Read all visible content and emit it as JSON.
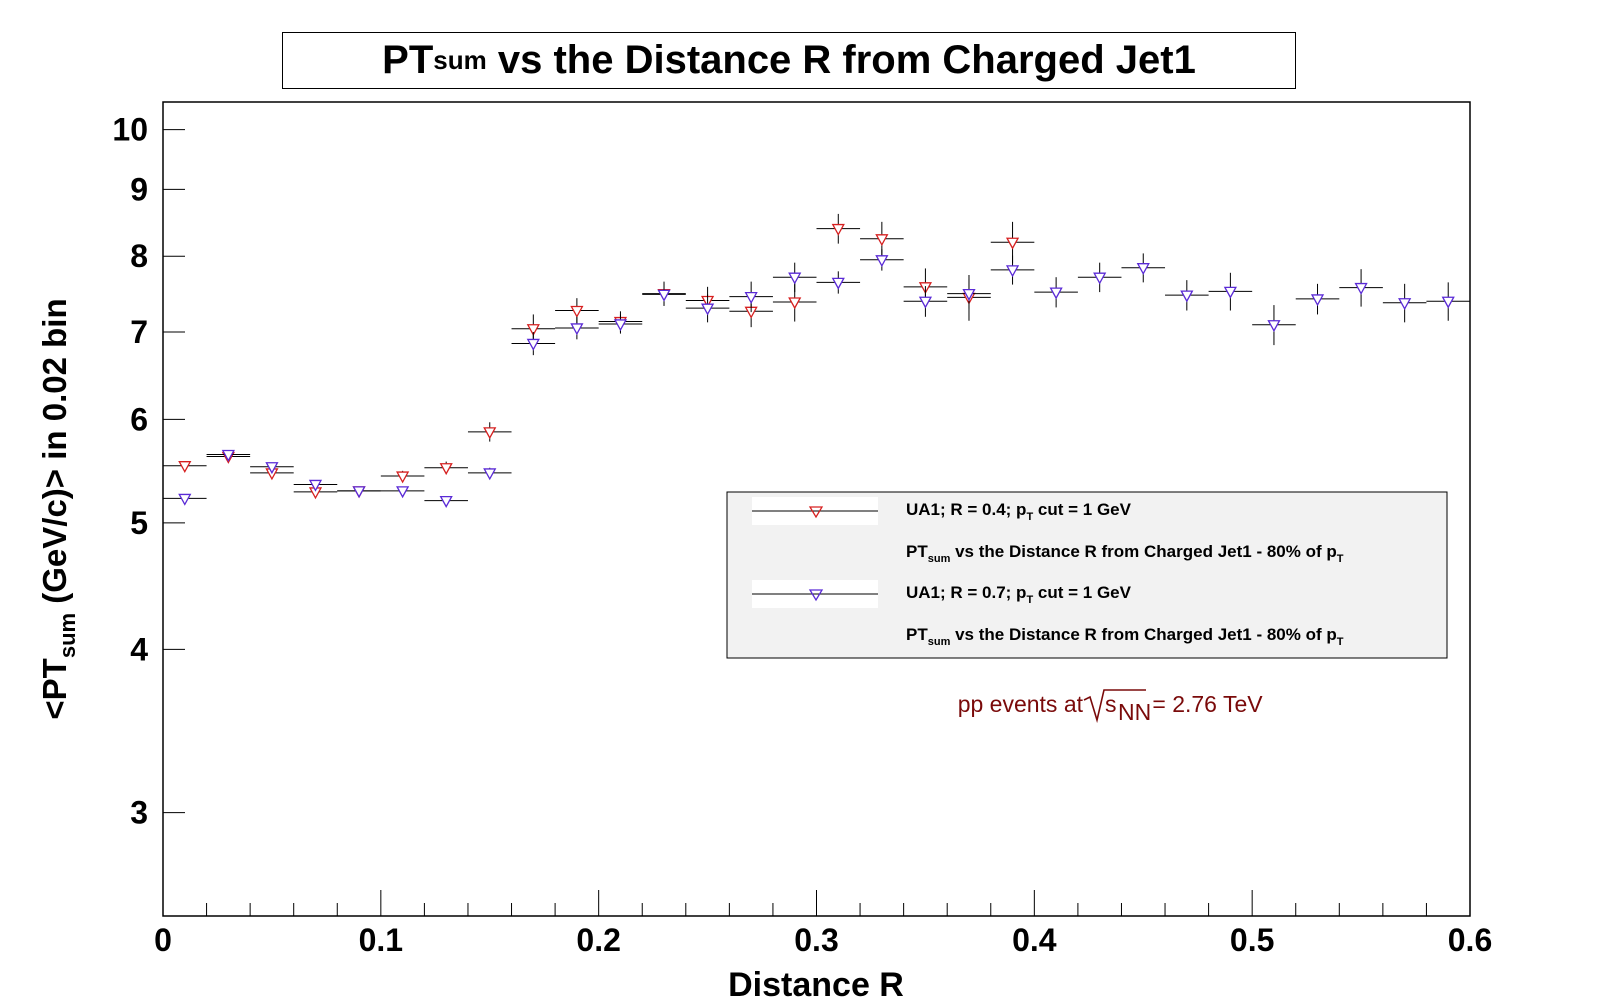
{
  "title": {
    "main": "PT",
    "sub": "sum",
    "rest": " vs the Distance R from Charged Jet1"
  },
  "chart_data": {
    "type": "scatter",
    "title": "PTsum vs the Distance R from Charged Jet1",
    "xlabel": "Distance R",
    "ylabel": "<PTsum (GeV/c)> in 0.02 bin",
    "ylabel_parts": {
      "pre": "<PT",
      "sub": "sum",
      "post": " (GeV/c)> in 0.02 bin"
    },
    "xlim": [
      0,
      0.6
    ],
    "ylim": [
      2.5,
      10.5
    ],
    "y_scale": "log",
    "x_ticks": [
      "0",
      "0.1",
      "0.2",
      "0.3",
      "0.4",
      "0.5",
      "0.6"
    ],
    "x_tick_values": [
      0,
      0.1,
      0.2,
      0.3,
      0.4,
      0.5,
      0.6
    ],
    "y_ticks": [
      "3",
      "4",
      "5",
      "6",
      "7",
      "8",
      "9",
      "10"
    ],
    "y_tick_values": [
      3,
      4,
      5,
      6,
      7,
      8,
      9,
      10
    ],
    "grid": false,
    "legend_position": "right",
    "bin_width": 0.02,
    "series": [
      {
        "name": "UA1; R = 0.4; pT cut = 1 GeV",
        "marker": "triangle-down",
        "color": "#d62020",
        "x": [
          0.01,
          0.03,
          0.05,
          0.07,
          0.09,
          0.11,
          0.13,
          0.15,
          0.17,
          0.19,
          0.21,
          0.23,
          0.25,
          0.27,
          0.29,
          0.31,
          0.33,
          0.35,
          0.37,
          0.39
        ],
        "y": [
          5.53,
          5.62,
          5.46,
          5.28,
          5.29,
          5.43,
          5.51,
          5.87,
          7.04,
          7.27,
          7.13,
          7.49,
          7.4,
          7.26,
          7.38,
          8.4,
          8.25,
          7.58,
          7.44,
          8.2
        ],
        "yerr": [
          0.04,
          0.04,
          0.04,
          0.04,
          0.04,
          0.05,
          0.06,
          0.1,
          0.18,
          0.16,
          0.13,
          0.16,
          0.18,
          0.2,
          0.25,
          0.22,
          0.25,
          0.25,
          0.3,
          0.3
        ]
      },
      {
        "name": "UA1; R = 0.7; pT cut = 1 GeV",
        "marker": "triangle-down",
        "color": "#5a2ad6",
        "x": [
          0.01,
          0.03,
          0.05,
          0.07,
          0.09,
          0.11,
          0.13,
          0.15,
          0.17,
          0.19,
          0.21,
          0.23,
          0.25,
          0.27,
          0.29,
          0.31,
          0.33,
          0.35,
          0.37,
          0.39,
          0.41,
          0.43,
          0.45,
          0.47,
          0.49,
          0.51,
          0.53,
          0.55,
          0.57,
          0.59
        ],
        "y": [
          5.22,
          5.64,
          5.52,
          5.35,
          5.29,
          5.29,
          5.2,
          5.46,
          6.86,
          7.05,
          7.1,
          7.48,
          7.3,
          7.45,
          7.71,
          7.64,
          7.95,
          7.39,
          7.49,
          7.81,
          7.51,
          7.71,
          7.84,
          7.47,
          7.52,
          7.09,
          7.42,
          7.57,
          7.37,
          7.39
        ],
        "yerr": [
          0.03,
          0.03,
          0.03,
          0.03,
          0.03,
          0.03,
          0.03,
          0.05,
          0.14,
          0.14,
          0.12,
          0.15,
          0.18,
          0.2,
          0.2,
          0.15,
          0.15,
          0.2,
          0.2,
          0.2,
          0.2,
          0.2,
          0.2,
          0.2,
          0.25,
          0.25,
          0.2,
          0.25,
          0.25,
          0.25
        ]
      }
    ]
  },
  "legend": {
    "entries": [
      {
        "label_pre": "UA1; R = 0.4; p",
        "label_sub": "T",
        "label_post": " cut = 1 GeV",
        "desc_pre": "PT",
        "desc_sub": "sum",
        "desc_mid": " vs the Distance R from Charged Jet1 - 80% of p",
        "desc_sub2": "T",
        "color": "#d62020"
      },
      {
        "label_pre": "UA1; R = 0.7; p",
        "label_sub": "T",
        "label_post": " cut = 1 GeV",
        "desc_pre": "PT",
        "desc_sub": "sum",
        "desc_mid": " vs the Distance R from Charged Jet1 - 80% of p",
        "desc_sub2": "T",
        "color": "#5a2ad6"
      }
    ]
  },
  "annotation": {
    "pre": "pp events at",
    "sqrt_s": "s",
    "sqrt_sub": "NN",
    "post": " = 2.76 TeV",
    "color": "#7a0a0a"
  }
}
